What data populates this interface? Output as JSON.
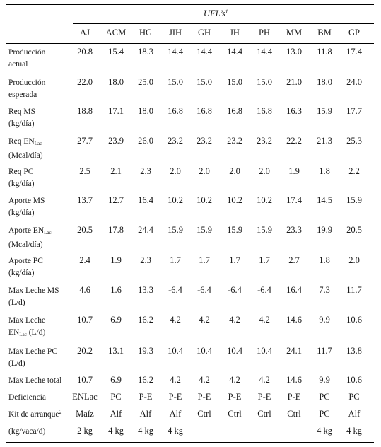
{
  "table": {
    "group_header": "UFL’s",
    "group_header_sup": "1",
    "columns": [
      "AJ",
      "ACM",
      "HG",
      "JIH",
      "GH",
      "JH",
      "PH",
      "MM",
      "BM",
      "GP"
    ],
    "rows": [
      {
        "label_lines": [
          "Producción",
          "actual"
        ],
        "values": [
          "20.8",
          "15.4",
          "18.3",
          "14.4",
          "14.4",
          "14.4",
          "14.4",
          "13.0",
          "11.8",
          "17.4"
        ]
      },
      {
        "label_lines": [
          "Producción",
          "esperada"
        ],
        "values": [
          "22.0",
          "18.0",
          "25.0",
          "15.0",
          "15.0",
          "15.0",
          "15.0",
          "21.0",
          "18.0",
          "24.0"
        ]
      },
      {
        "label_lines": [
          "Req MS",
          "(kg/día)"
        ],
        "values": [
          "18.8",
          "17.1",
          "18.0",
          "16.8",
          "16.8",
          "16.8",
          "16.8",
          "16.3",
          "15.9",
          "17.7"
        ]
      },
      {
        "label_lines": [
          "Req EN",
          "(Mcal/día)"
        ],
        "label_sub": "Lac",
        "values": [
          "27.7",
          "23.9",
          "26.0",
          "23.2",
          "23.2",
          "23.2",
          "23.2",
          "22.2",
          "21.3",
          "25.3"
        ]
      },
      {
        "label_lines": [
          "Req PC",
          "(kg/día)"
        ],
        "values": [
          "2.5",
          "2.1",
          "2.3",
          "2.0",
          "2.0",
          "2.0",
          "2.0",
          "1.9",
          "1.8",
          "2.2"
        ]
      },
      {
        "label_lines": [
          "Aporte MS",
          "(kg/día)"
        ],
        "values": [
          "13.7",
          "12.7",
          "16.4",
          "10.2",
          "10.2",
          "10.2",
          "10.2",
          "17.4",
          "14.5",
          "15.9"
        ]
      },
      {
        "label_lines": [
          "Aporte EN",
          "(Mcal/día)"
        ],
        "label_sub": "Lac",
        "values": [
          "20.5",
          "17.8",
          "24.4",
          "15.9",
          "15.9",
          "15.9",
          "15.9",
          "23.3",
          "19.9",
          "20.5"
        ]
      },
      {
        "label_lines": [
          "Aporte PC",
          "(kg/día)"
        ],
        "values": [
          "2.4",
          "1.9",
          "2.3",
          "1.7",
          "1.7",
          "1.7",
          "1.7",
          "2.7",
          "1.8",
          "2.0"
        ]
      },
      {
        "label_lines": [
          "Max Leche MS",
          "(L/d)"
        ],
        "values": [
          "4.6",
          "1.6",
          "13.3",
          "-6.4",
          "-6.4",
          "-6.4",
          "-6.4",
          "16.4",
          "7.3",
          "11.7"
        ]
      },
      {
        "label_lines": [
          "Max Leche",
          "EN",
          "(L/d)"
        ],
        "label_sub": "Lac",
        "values": [
          "10.7",
          "6.9",
          "16.2",
          "4.2",
          "4.2",
          "4.2",
          "4.2",
          "14.6",
          "9.9",
          "10.6"
        ]
      },
      {
        "label_lines": [
          "Max Leche PC",
          "(L/d)"
        ],
        "values": [
          "20.2",
          "13.1",
          "19.3",
          "10.4",
          "10.4",
          "10.4",
          "10.4",
          "24.1",
          "11.7",
          "13.8"
        ]
      },
      {
        "label_lines": [
          "Max Leche total"
        ],
        "values": [
          "10.7",
          "6.9",
          "16.2",
          "4.2",
          "4.2",
          "4.2",
          "4.2",
          "14.6",
          "9.9",
          "10.6"
        ]
      },
      {
        "label_lines": [
          "Deficiencia"
        ],
        "values": [
          "ENLac",
          "PC",
          "P-E",
          "P-E",
          "P-E",
          "P-E",
          "P-E",
          "P-E",
          "PC",
          "PC"
        ]
      },
      {
        "label_lines": [
          "Kit de arranque"
        ],
        "label_sup": "2",
        "values": [
          "Maíz",
          "Alf",
          "Alf",
          "Alf",
          "Ctrl",
          "Ctrl",
          "Ctrl",
          "Ctrl",
          "PC",
          "Alf"
        ]
      },
      {
        "label_lines": [
          "(kg/vaca/d)"
        ],
        "values": [
          "2 kg",
          "4 kg",
          "4 kg",
          "4 kg",
          "",
          "",
          "",
          "",
          "4 kg",
          "4 kg"
        ]
      }
    ]
  }
}
